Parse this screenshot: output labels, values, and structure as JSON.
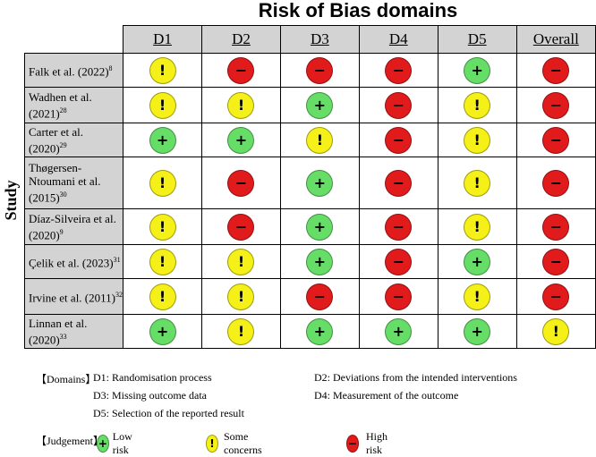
{
  "title": "Risk of Bias domains",
  "y_label": "Study",
  "domains": [
    "D1",
    "D2",
    "D3",
    "D4",
    "D5",
    "Overall"
  ],
  "colors": {
    "low": "#66dd66",
    "some": "#f5f017",
    "high": "#e11b1b"
  },
  "glyphs": {
    "low": "+",
    "some": "!",
    "high": "−"
  },
  "studies": [
    {
      "name": "Falk et al. (2022)",
      "ref": "8",
      "judgements": [
        "some",
        "high",
        "high",
        "high",
        "low",
        "high"
      ]
    },
    {
      "name": "Wadhen et al. (2021)",
      "ref": "28",
      "judgements": [
        "some",
        "some",
        "low",
        "high",
        "some",
        "high"
      ]
    },
    {
      "name": "Carter et al. (2020)",
      "ref": "29",
      "judgements": [
        "low",
        "low",
        "some",
        "high",
        "some",
        "high"
      ]
    },
    {
      "name": "Thøgersen-Ntoumani et al. (2015)",
      "ref": "30",
      "judgements": [
        "some",
        "high",
        "low",
        "high",
        "some",
        "high"
      ]
    },
    {
      "name": "Díaz-Silveira et al. (2020)",
      "ref": "9",
      "judgements": [
        "some",
        "high",
        "low",
        "high",
        "some",
        "high"
      ]
    },
    {
      "name": "Çelik et al. (2023)",
      "ref": "31",
      "judgements": [
        "some",
        "some",
        "low",
        "high",
        "low",
        "high"
      ]
    },
    {
      "name": "Irvine et al. (2011)",
      "ref": "32",
      "judgements": [
        "some",
        "some",
        "high",
        "high",
        "some",
        "high"
      ]
    },
    {
      "name": "Linnan et al. (2020)",
      "ref": "33",
      "judgements": [
        "low",
        "some",
        "low",
        "low",
        "low",
        "some"
      ]
    }
  ],
  "legend": {
    "domains_label": "【Domains】",
    "domain_defs": [
      "D1: Randomisation process",
      "D2: Deviations from the intended interventions",
      "D3: Missing outcome data",
      "D4: Measurement of the outcome",
      "D5: Selection of the reported result"
    ],
    "judgement_label": "【Judgement】",
    "judgements": [
      {
        "key": "low",
        "label": "Low risk"
      },
      {
        "key": "some",
        "label": "Some concerns"
      },
      {
        "key": "high",
        "label": "High risk"
      }
    ]
  }
}
